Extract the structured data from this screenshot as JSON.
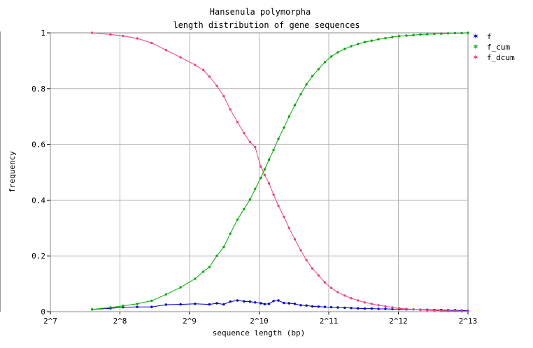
{
  "chart_data": {
    "type": "line",
    "title": [
      "Hansenula polymorpha",
      "length distribution of gene sequences"
    ],
    "xlabel": "sequence length (bp)",
    "ylabel": "frequency",
    "x_scale": "log2",
    "xlim": [
      128,
      8192
    ],
    "ylim": [
      0,
      1
    ],
    "x_ticks": [
      128,
      256,
      512,
      1024,
      2048,
      4096,
      8192
    ],
    "x_tick_labels": [
      "2^7",
      "2^8",
      "2^9",
      "2^10",
      "2^11",
      "2^12",
      "2^13"
    ],
    "y_ticks": [
      0,
      0.2,
      0.4,
      0.6,
      0.8,
      1
    ],
    "y_tick_labels": [
      "0",
      "0.2",
      "0.4",
      "0.6",
      "0.8",
      "1"
    ],
    "grid": true,
    "legend_position": "top-right",
    "series": [
      {
        "name": "f",
        "color": "#0000cc",
        "x": [
          194,
          233,
          264,
          304,
          351,
          405,
          468,
          541,
          624,
          672,
          720,
          768,
          825,
          881,
          935,
          984,
          1041,
          1081,
          1130,
          1182,
          1240,
          1310,
          1380,
          1460,
          1550,
          1640,
          1740,
          1850,
          1970,
          2100,
          2240,
          2400,
          2560,
          2740,
          2930,
          3140,
          3360,
          3600,
          3860,
          4140,
          4440,
          4760,
          5100,
          5460,
          5860,
          6280,
          6720,
          7200,
          7700,
          8192
        ],
        "values": [
          0.008,
          0.012,
          0.016,
          0.017,
          0.017,
          0.025,
          0.026,
          0.028,
          0.026,
          0.03,
          0.026,
          0.036,
          0.04,
          0.037,
          0.036,
          0.033,
          0.03,
          0.027,
          0.028,
          0.038,
          0.04,
          0.031,
          0.03,
          0.028,
          0.023,
          0.022,
          0.019,
          0.018,
          0.017,
          0.016,
          0.015,
          0.014,
          0.013,
          0.012,
          0.011,
          0.011,
          0.01,
          0.01,
          0.009,
          0.009,
          0.008,
          0.008,
          0.007,
          0.007,
          0.006,
          0.006,
          0.005,
          0.005,
          0.004,
          0.003
        ]
      },
      {
        "name": "f_cum",
        "color": "#00aa00",
        "x": [
          194,
          233,
          264,
          304,
          351,
          405,
          468,
          541,
          587,
          624,
          672,
          720,
          768,
          825,
          881,
          935,
          984,
          1041,
          1081,
          1130,
          1182,
          1240,
          1310,
          1380,
          1460,
          1550,
          1640,
          1740,
          1850,
          1970,
          2100,
          2240,
          2400,
          2560,
          2740,
          2930,
          3140,
          3360,
          3600,
          3860,
          4140,
          4440,
          4760,
          5100,
          5460,
          5860,
          6280,
          6720,
          7200,
          7700,
          8192
        ],
        "values": [
          0.008,
          0.015,
          0.021,
          0.028,
          0.039,
          0.062,
          0.087,
          0.118,
          0.143,
          0.16,
          0.2,
          0.232,
          0.28,
          0.33,
          0.368,
          0.402,
          0.44,
          0.48,
          0.51,
          0.545,
          0.58,
          0.62,
          0.66,
          0.7,
          0.74,
          0.78,
          0.815,
          0.845,
          0.87,
          0.895,
          0.915,
          0.93,
          0.942,
          0.952,
          0.96,
          0.967,
          0.972,
          0.977,
          0.981,
          0.985,
          0.988,
          0.99,
          0.992,
          0.994,
          0.995,
          0.996,
          0.997,
          0.998,
          0.999,
          0.999,
          1.0
        ]
      },
      {
        "name": "f_dcum",
        "color": "#ee4477",
        "x": [
          194,
          233,
          264,
          304,
          351,
          405,
          468,
          541,
          587,
          624,
          672,
          720,
          768,
          825,
          881,
          935,
          984,
          1041,
          1081,
          1130,
          1182,
          1240,
          1310,
          1380,
          1460,
          1550,
          1640,
          1740,
          1850,
          1970,
          2100,
          2240,
          2400,
          2560,
          2740,
          2930,
          3140,
          3360,
          3600,
          3860,
          4140,
          4440,
          4760,
          5100,
          5460,
          5860,
          6280,
          6720,
          7200,
          7700,
          8192
        ],
        "values": [
          1.0,
          0.994,
          0.989,
          0.98,
          0.964,
          0.938,
          0.912,
          0.885,
          0.867,
          0.843,
          0.81,
          0.773,
          0.725,
          0.68,
          0.64,
          0.608,
          0.59,
          0.52,
          0.49,
          0.46,
          0.42,
          0.38,
          0.34,
          0.3,
          0.26,
          0.22,
          0.185,
          0.155,
          0.13,
          0.105,
          0.085,
          0.07,
          0.058,
          0.048,
          0.04,
          0.033,
          0.028,
          0.023,
          0.019,
          0.015,
          0.012,
          0.01,
          0.008,
          0.006,
          0.005,
          0.004,
          0.003,
          0.002,
          0.002,
          0.001,
          0.001
        ]
      }
    ]
  }
}
